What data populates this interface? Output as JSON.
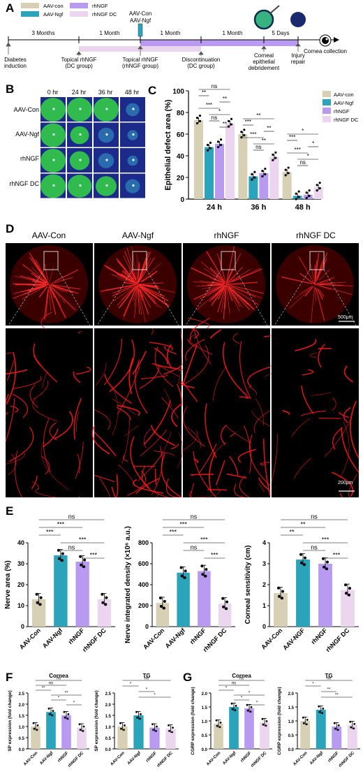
{
  "panel_labels": {
    "A": "A",
    "B": "B",
    "C": "C",
    "D": "D",
    "E": "E",
    "F": "F",
    "G": "G"
  },
  "timeline": {
    "legend": [
      {
        "label": "AAV-con",
        "color": "#d8d0b5"
      },
      {
        "label": "AAV-Ngf",
        "color": "#2aa3bb"
      },
      {
        "label": "rhNGF",
        "color": "#b89af0"
      },
      {
        "label": "rhNGF DC",
        "color": "#ecd5ee"
      }
    ],
    "injection_label_1": "AAV-Con",
    "injection_label_2": "AAV-Ngf",
    "intervals": [
      "3 Months",
      "1 Month",
      "1 Month",
      "1 Month",
      "5 Days"
    ],
    "events": [
      "Diabetes induction",
      "Topical rhNGF (DC group)",
      "Topical rhNGF (rhNGF group)",
      "Discontinuation (DC group)",
      "Corneal epithelial debridement",
      "Injury repair",
      "Cornea collection"
    ]
  },
  "panel_b": {
    "times": [
      "0 hr",
      "24 hr",
      "36 hr",
      "48 hr"
    ],
    "rows": [
      "AAV-Con",
      "AAV-Ngf",
      "rhNGF",
      "rhNGF DC"
    ]
  },
  "panel_c": {
    "chart_data": {
      "type": "bar",
      "ylabel": "Epithelial defect area (%)",
      "categories": [
        "24 h",
        "36 h",
        "48 h"
      ],
      "yticks": [
        "0",
        "20",
        "40",
        "60",
        "80",
        "100"
      ],
      "ylim": [
        0,
        100
      ],
      "series": [
        {
          "name": "AAV-con",
          "color": "#d8d0b5",
          "values": [
            73,
            60,
            25
          ]
        },
        {
          "name": "AAV-Ngf",
          "color": "#2aa3bb",
          "values": [
            48,
            21,
            3
          ]
        },
        {
          "name": "rhNGF",
          "color": "#b89af0",
          "values": [
            51,
            24,
            4
          ]
        },
        {
          "name": "rhNGF DC",
          "color": "#ecd5ee",
          "values": [
            70,
            39,
            11
          ]
        }
      ],
      "sig": [
        [
          "ns",
          "**",
          "**",
          "***",
          "*",
          "ns",
          "**"
        ],
        [
          "**",
          "***",
          "**",
          "***",
          "**",
          "ns"
        ],
        [
          "*",
          "***",
          "*",
          "***",
          "*",
          "ns"
        ]
      ]
    }
  },
  "panel_d": {
    "columns": [
      "AAV-Con",
      "AAV-Ngf",
      "rhNGF",
      "rhNGF DC"
    ],
    "scale_top": "500μm",
    "scale_bottom": "200μm"
  },
  "panel_e": {
    "chart_data": [
      {
        "type": "bar",
        "ylabel": "Nerve area (%)",
        "categories": [
          "AAV-Con",
          "AAV-Ngf",
          "rhNGF",
          "rhNGF DC"
        ],
        "values": [
          13,
          34,
          31,
          13
        ],
        "yticks": [
          "0",
          "10",
          "20",
          "30",
          "40"
        ],
        "ylim": [
          0,
          40
        ],
        "sig": [
          "ns",
          "***",
          "***",
          "***",
          "ns",
          "***"
        ]
      },
      {
        "type": "bar",
        "ylabel": "Nerve integrated density (×10⁶ a.u.)",
        "categories": [
          "AAV-Con",
          "AAV-Ngf",
          "rhNGF",
          "rhNGF DC"
        ],
        "values": [
          225,
          515,
          530,
          220
        ],
        "yticks": [
          "0",
          "200",
          "400",
          "600",
          "800"
        ],
        "ylim": [
          0,
          800
        ],
        "sig": [
          "ns",
          "***",
          "***",
          "***",
          "ns",
          "***"
        ]
      },
      {
        "type": "bar",
        "ylabel": "Corneal sensitivity (cm)",
        "categories": [
          "AAV-Con",
          "AAV-NGF",
          "rhNGF",
          "rhNGF DC"
        ],
        "values": [
          1.6,
          3.2,
          3.0,
          1.75
        ],
        "yticks": [
          "0",
          "1",
          "2",
          "3",
          "4"
        ],
        "ylim": [
          0,
          4
        ],
        "sig": [
          "ns",
          "**",
          "**",
          "***",
          "ns",
          "***"
        ]
      }
    ]
  },
  "panel_f": {
    "chart_data": [
      {
        "type": "bar",
        "title": "Cornea",
        "ylabel": "SP expression (fold change)",
        "categories": [
          "AAV-Con",
          "AAV-Ngf",
          "rhNGF",
          "rhNGF DC"
        ],
        "values": [
          1.0,
          1.65,
          1.5,
          0.95
        ],
        "yticks": [
          "0.0",
          "0.5",
          "1.0",
          "1.5",
          "2.0",
          "2.5"
        ],
        "ylim": [
          0,
          2.5
        ],
        "sig": [
          "ns",
          "ns",
          "**",
          "**",
          "*",
          "*"
        ]
      },
      {
        "type": "bar",
        "title": "TG",
        "ylabel": "SP expression (fold change)",
        "categories": [
          "AAV-Con",
          "AAV-Ngf",
          "rhNGF",
          "rhNGF DC"
        ],
        "values": [
          1.0,
          1.5,
          0.95,
          0.9
        ],
        "yticks": [
          "0.0",
          "0.5",
          "1.0",
          "1.5",
          "2.0",
          "2.5"
        ],
        "ylim": [
          0,
          2.5
        ],
        "sig": [
          "ns",
          "*",
          "*",
          "*"
        ]
      }
    ]
  },
  "panel_g": {
    "chart_data": [
      {
        "type": "bar",
        "title": "Cornea",
        "ylabel": "CGRP expression (fold change)",
        "categories": [
          "AAV-Con",
          "AAV-Ngf",
          "rhNGF",
          "rhNGF DC"
        ],
        "values": [
          0.9,
          1.5,
          1.45,
          0.95
        ],
        "yticks": [
          "0.0",
          "0.5",
          "1.0",
          "1.5",
          "2.0"
        ],
        "ylim": [
          0,
          2.0
        ],
        "sig": [
          "ns",
          "ns",
          "*",
          "*",
          "*",
          "*"
        ]
      },
      {
        "type": "bar",
        "title": "TG",
        "ylabel": "CGRP expression (fold change)",
        "categories": [
          "AAV-Con",
          "AAV-Ngf",
          "rhNGF",
          "rhNGF DC"
        ],
        "values": [
          1.0,
          1.4,
          0.8,
          0.85
        ],
        "yticks": [
          "0.0",
          "0.5",
          "1.0",
          "1.5",
          "2.0"
        ],
        "ylim": [
          0,
          2.0
        ],
        "sig": [
          "ns",
          "*",
          "**",
          "**"
        ]
      }
    ]
  }
}
